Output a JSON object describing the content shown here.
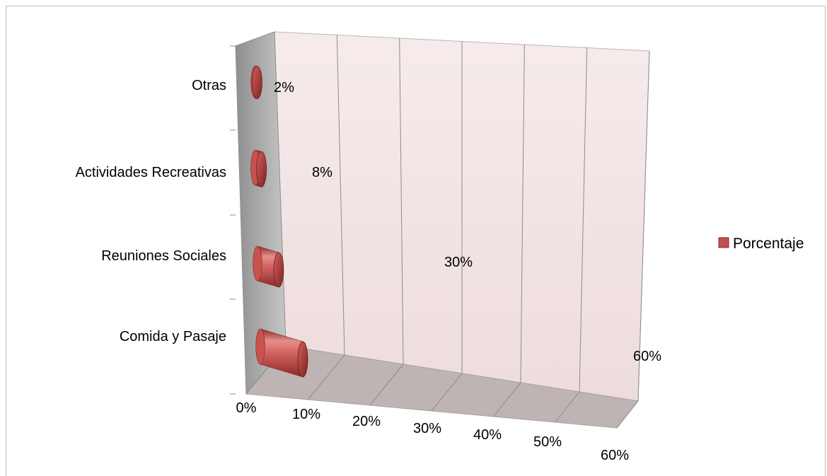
{
  "chart_data": {
    "type": "bar",
    "orientation": "horizontal",
    "style": "3d-cylinder",
    "categories": [
      "Comida y Pasaje",
      "Reuniones Sociales",
      "Actividades Recreativas",
      "Otras"
    ],
    "series": [
      {
        "name": "Porcentaje",
        "values": [
          60,
          30,
          8,
          2
        ],
        "data_labels": [
          "60%",
          "30%",
          "8%",
          "2%"
        ],
        "color": "#c0504d"
      }
    ],
    "xlim": [
      0,
      60
    ],
    "x_ticks": [
      "0%",
      "10%",
      "20%",
      "30%",
      "40%",
      "50%",
      "60%"
    ],
    "grid": true,
    "legend_position": "right",
    "colors": {
      "bar": "#c0504d",
      "bar_light": "#e58f8d",
      "bar_dark": "#8c2a27",
      "back_wall": "#f4e6e6",
      "side_wall": "#a6a6a6",
      "floor": "#bfb4b4",
      "gridline": "#8c8c8c"
    }
  }
}
